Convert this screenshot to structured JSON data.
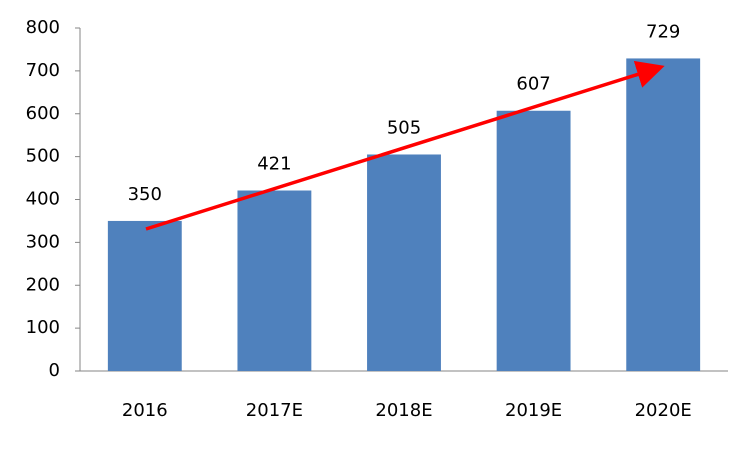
{
  "chart_data": {
    "type": "bar",
    "categories": [
      "2016",
      "2017E",
      "2018E",
      "2019E",
      "2020E"
    ],
    "values": [
      350,
      421,
      505,
      607,
      729
    ],
    "color": "#4f81bd",
    "ylim": [
      0,
      800
    ],
    "yticks": [
      0,
      100,
      200,
      300,
      400,
      500,
      600,
      700,
      800
    ],
    "grid": false,
    "data_labels": true
  }
}
